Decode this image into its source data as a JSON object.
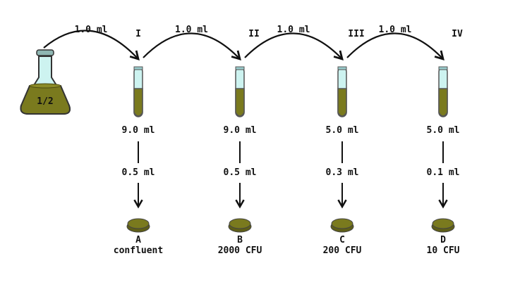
{
  "flask": {
    "label": "1/2"
  },
  "transfers": [
    "1.0 ml",
    "1.0 ml",
    "1.0 ml",
    "1.0 ml"
  ],
  "tubes": [
    {
      "numeral": "I",
      "volume": "9.0 ml",
      "plated": "0.5 ml",
      "plate": "A",
      "result": "confluent"
    },
    {
      "numeral": "II",
      "volume": "9.0 ml",
      "plated": "0.5 ml",
      "plate": "B",
      "result": "2000 CFU"
    },
    {
      "numeral": "III",
      "volume": "5.0 ml",
      "plated": "0.3 ml",
      "plate": "C",
      "result": "200 CFU"
    },
    {
      "numeral": "IV",
      "volume": "5.0 ml",
      "plated": "0.1 ml",
      "plate": "D",
      "result": "10 CFU"
    }
  ],
  "colors": {
    "liquid": "#7a7a1e",
    "liquid_dark": "#4a4a10",
    "glass": "#cdf3f0",
    "ink": "#111111"
  }
}
